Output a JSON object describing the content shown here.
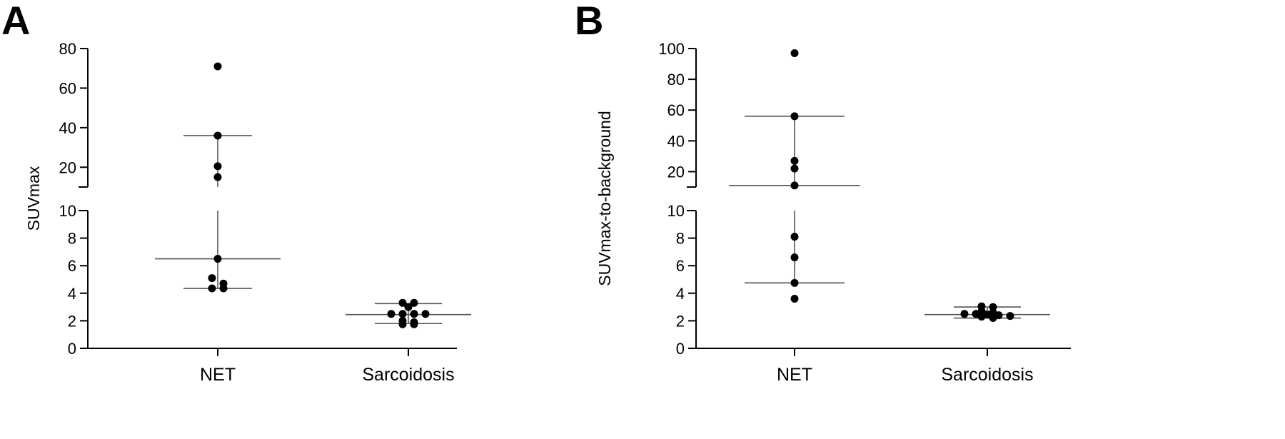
{
  "chart_data": [
    {
      "panel": "A",
      "type": "scatter",
      "ylabel": "SUVmax",
      "categories": [
        "NET",
        "Sarcoidosis"
      ],
      "y_axis_break": {
        "lower": {
          "range": [
            0,
            10
          ],
          "ticks": [
            "0",
            "2",
            "4",
            "6",
            "8",
            "10"
          ]
        },
        "upper": {
          "range": [
            10,
            80
          ],
          "ticks": [
            "20",
            "40",
            "60",
            "80"
          ]
        }
      },
      "series": [
        {
          "category": "NET",
          "points": [
            71,
            36,
            20.5,
            15,
            6.5,
            5.1,
            4.7,
            4.35,
            4.35
          ],
          "median": 6.5,
          "iqr": [
            4.35,
            36
          ]
        },
        {
          "category": "Sarcoidosis",
          "points": [
            3.3,
            3.3,
            3.0,
            2.5,
            2.5,
            2.5,
            2.5,
            2.0,
            1.9,
            1.75,
            1.75
          ],
          "median": 2.45,
          "iqr": [
            1.8,
            3.25
          ]
        }
      ]
    },
    {
      "panel": "B",
      "type": "scatter",
      "ylabel": "SUVmax-to-background",
      "categories": [
        "NET",
        "Sarcoidosis"
      ],
      "y_axis_break": {
        "lower": {
          "range": [
            0,
            10
          ],
          "ticks": [
            "0",
            "2",
            "4",
            "6",
            "8",
            "10"
          ]
        },
        "upper": {
          "range": [
            10,
            100
          ],
          "ticks": [
            "20",
            "40",
            "60",
            "80",
            "100"
          ]
        }
      },
      "series": [
        {
          "category": "NET",
          "points": [
            97,
            56,
            27,
            22,
            11,
            8.1,
            6.6,
            4.75,
            3.6
          ],
          "median": 11,
          "iqr": [
            4.75,
            56
          ]
        },
        {
          "category": "Sarcoidosis",
          "points": [
            3.05,
            3.0,
            2.7,
            2.6,
            2.5,
            2.5,
            2.45,
            2.4,
            2.35,
            2.3,
            2.2
          ],
          "median": 2.45,
          "iqr": [
            2.2,
            3.0
          ]
        }
      ]
    }
  ]
}
